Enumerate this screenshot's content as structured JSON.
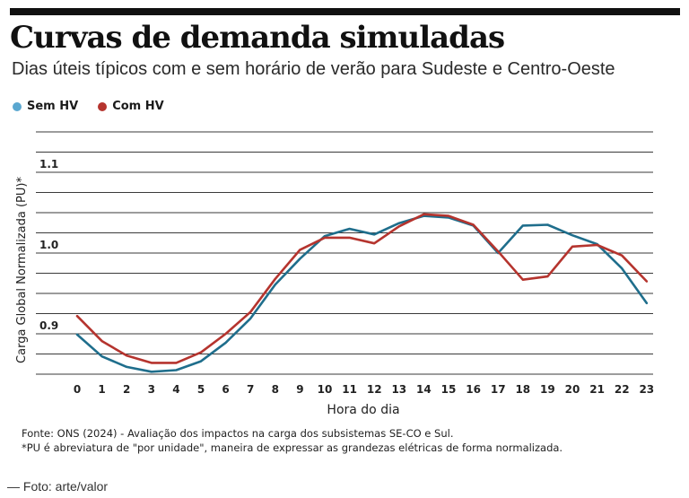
{
  "header": {
    "title": "Curvas de demanda simuladas",
    "subtitle": "Dias úteis típicos com e sem horário de verão para Sudeste e Centro-Oeste"
  },
  "legend": {
    "items": [
      {
        "label": "Sem HV",
        "color": "#1f6e8c"
      },
      {
        "label": "Com HV",
        "color": "#b5342e"
      }
    ]
  },
  "chart_data": {
    "type": "line",
    "xlabel": "Hora do dia",
    "ylabel": "Carga Global Normalizada (PU)*",
    "ytick_labels": [
      "0.9",
      "1.0",
      "1.1"
    ],
    "ylim": [
      0.85,
      1.15
    ],
    "grid": true,
    "legend_position": "top-left",
    "x": [
      0,
      1,
      2,
      3,
      4,
      5,
      6,
      7,
      8,
      9,
      10,
      11,
      12,
      13,
      14,
      15,
      16,
      17,
      18,
      19,
      20,
      21,
      22,
      23
    ],
    "series": [
      {
        "name": "Sem HV",
        "color": "#1f6e8c",
        "values": [
          0.899,
          0.872,
          0.859,
          0.853,
          0.855,
          0.866,
          0.889,
          0.919,
          0.961,
          0.993,
          1.021,
          1.03,
          1.023,
          1.037,
          1.046,
          1.044,
          1.034,
          1.0,
          1.034,
          1.035,
          1.022,
          1.011,
          0.981,
          0.938
        ]
      },
      {
        "name": "Com HV",
        "color": "#b5342e",
        "values": [
          0.922,
          0.891,
          0.873,
          0.864,
          0.864,
          0.877,
          0.9,
          0.927,
          0.968,
          1.004,
          1.019,
          1.019,
          1.012,
          1.033,
          1.048,
          1.046,
          1.035,
          1.002,
          0.967,
          0.971,
          1.008,
          1.01,
          0.997,
          0.965
        ]
      }
    ]
  },
  "footer": {
    "source": "Fonte: ONS (2024) - Avaliação dos impactos na carga dos subsistemas SE-CO e Sul.",
    "note": "*PU é abreviatura de \"por unidade\", maneira de expressar as grandezas elétricas de forma normalizada.",
    "credit": "— Foto: arte/valor"
  }
}
